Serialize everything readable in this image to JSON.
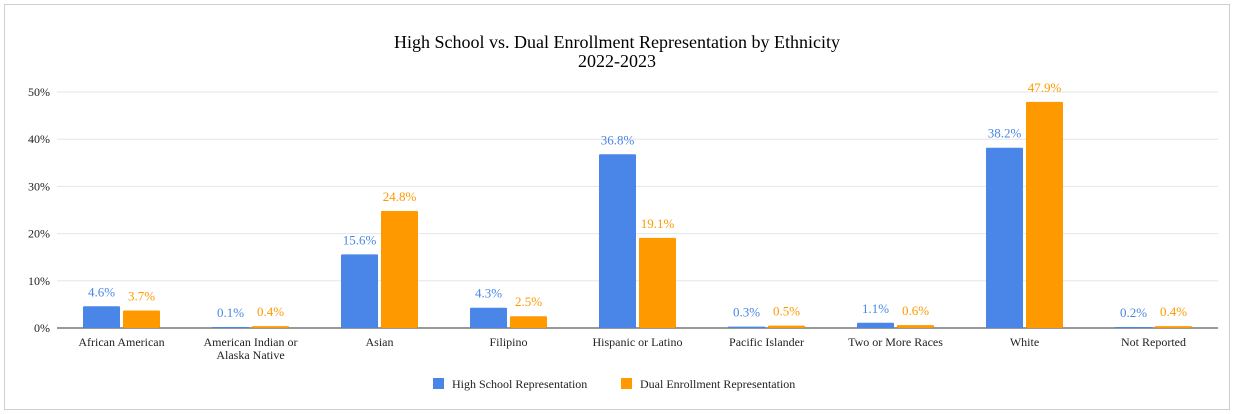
{
  "chart_data": {
    "type": "bar",
    "title": "High School vs. Dual Enrollment Representation by Ethnicity",
    "subtitle": "2022-2023",
    "xlabel": "",
    "ylabel": "",
    "ylim": [
      0,
      50
    ],
    "yticks": [
      "0%",
      "10%",
      "20%",
      "30%",
      "40%",
      "50%"
    ],
    "ytick_values": [
      0,
      10,
      20,
      30,
      40,
      50
    ],
    "grid": true,
    "legend_position": "bottom",
    "categories": [
      [
        "African American"
      ],
      [
        "American Indian or",
        "Alaska Native"
      ],
      [
        "Asian"
      ],
      [
        "Filipino"
      ],
      [
        "Hispanic or Latino"
      ],
      [
        "Pacific Islander"
      ],
      [
        "Two or More Races"
      ],
      [
        "White"
      ],
      [
        "Not Reported"
      ]
    ],
    "series": [
      {
        "name": "High School Representation",
        "color": "#4a86e8",
        "values": [
          4.6,
          0.1,
          15.6,
          4.3,
          36.8,
          0.3,
          1.1,
          38.2,
          0.2
        ],
        "labels": [
          "4.6%",
          "0.1%",
          "15.6%",
          "4.3%",
          "36.8%",
          "0.3%",
          "1.1%",
          "38.2%",
          "0.2%"
        ]
      },
      {
        "name": "Dual Enrollment Representation",
        "color": "#ff9900",
        "values": [
          3.7,
          0.4,
          24.8,
          2.5,
          19.1,
          0.5,
          0.6,
          47.9,
          0.4
        ],
        "labels": [
          "3.7%",
          "0.4%",
          "24.8%",
          "2.5%",
          "19.1%",
          "0.5%",
          "0.6%",
          "47.9%",
          "0.4%"
        ]
      }
    ]
  }
}
